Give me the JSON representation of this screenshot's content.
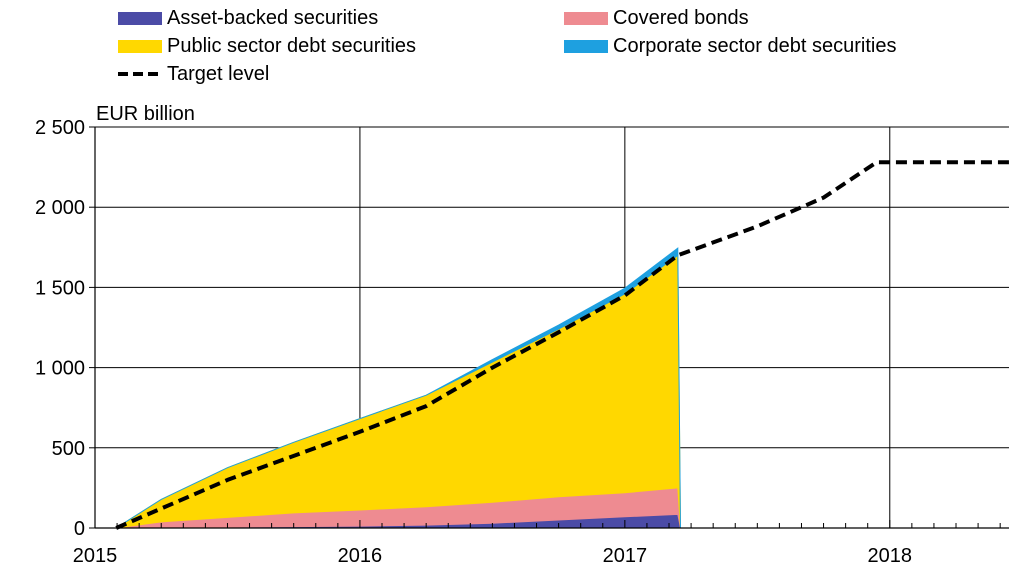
{
  "legend": {
    "abs": "Asset-backed securities",
    "covered": "Covered bonds",
    "public": "Public sector debt securities",
    "corporate": "Corporate sector debt securities",
    "target": "Target level"
  },
  "chart_data": {
    "type": "area",
    "title": "",
    "xlabel": "",
    "ylabel": "EUR billion",
    "ylim": [
      0,
      2500
    ],
    "yticks": [
      0,
      500,
      1000,
      1500,
      2000,
      2500
    ],
    "ytick_labels": [
      "0",
      "500",
      "1 000",
      "1 500",
      "2 000",
      "2 500"
    ],
    "xlim": [
      2015.0,
      2018.45
    ],
    "xtick_labels": [
      "2015",
      "2016",
      "2017",
      "2018"
    ],
    "xtick_values": [
      2015,
      2016,
      2017,
      2018
    ],
    "grid": true,
    "legend_position": "top",
    "stacked": true,
    "series": [
      {
        "name": "Asset-backed securities",
        "color": "#4b4ba6",
        "x": [
          2015.08,
          2015.25,
          2015.5,
          2015.75,
          2016.0,
          2016.25,
          2016.5,
          2016.75,
          2017.0,
          2017.2,
          2017.21
        ],
        "values": [
          0,
          3,
          6,
          9,
          12,
          18,
          30,
          50,
          70,
          85,
          0
        ]
      },
      {
        "name": "Covered bonds",
        "color": "#ee8b91",
        "x": [
          2015.08,
          2015.25,
          2015.5,
          2015.75,
          2016.0,
          2016.25,
          2016.5,
          2016.75,
          2017.0,
          2017.2,
          2017.21
        ],
        "values": [
          0,
          35,
          60,
          85,
          100,
          115,
          130,
          145,
          150,
          165,
          0
        ]
      },
      {
        "name": "Public sector debt securities",
        "color": "#ffd800",
        "x": [
          2015.08,
          2015.25,
          2015.5,
          2015.75,
          2016.0,
          2016.25,
          2016.5,
          2016.75,
          2017.0,
          2017.2,
          2017.21
        ],
        "values": [
          0,
          140,
          310,
          440,
          570,
          695,
          875,
          1045,
          1240,
          1450,
          0
        ]
      },
      {
        "name": "Corporate sector debt securities",
        "color": "#1ea0e0",
        "x": [
          2015.08,
          2015.25,
          2015.5,
          2015.75,
          2016.0,
          2016.25,
          2016.5,
          2016.75,
          2017.0,
          2017.2,
          2017.21
        ],
        "values": [
          0,
          0,
          0,
          0,
          0,
          0,
          15,
          25,
          35,
          45,
          0
        ]
      }
    ],
    "target": {
      "name": "Target level",
      "x": [
        2015.08,
        2015.5,
        2016.0,
        2016.25,
        2016.5,
        2016.75,
        2017.0,
        2017.2,
        2017.5,
        2017.75,
        2017.95,
        2018.45
      ],
      "values": [
        0,
        300,
        600,
        760,
        1000,
        1220,
        1450,
        1700,
        1880,
        2060,
        2280,
        2280
      ]
    }
  }
}
